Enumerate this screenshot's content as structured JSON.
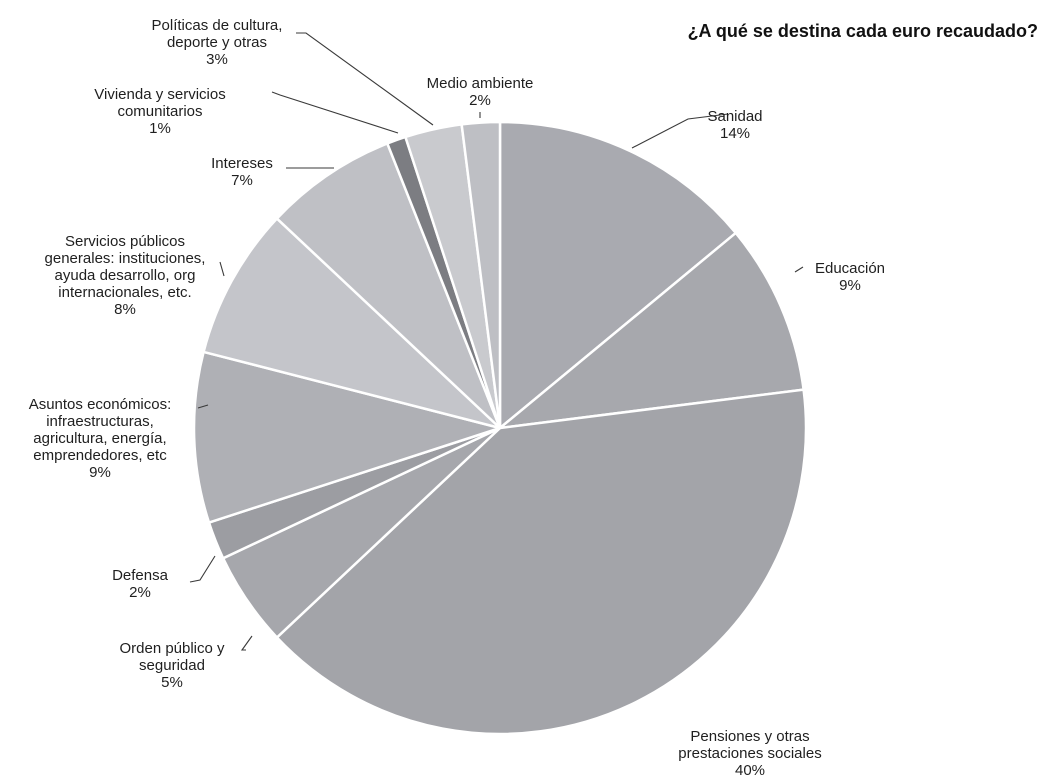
{
  "chart_data": {
    "type": "pie",
    "title": "¿A qué se destina cada euro recaudado?",
    "unit": "%",
    "start_angle_deg": 0,
    "direction": "clockwise",
    "slices": [
      {
        "label": "Sanidad",
        "value": 14,
        "value_label": "14%",
        "lines": [
          "Sanidad",
          "14%"
        ],
        "color": "#a9aab0"
      },
      {
        "label": "Educación",
        "value": 9,
        "value_label": "9%",
        "lines": [
          "Educación",
          "9%"
        ],
        "color": "#a7a8ad"
      },
      {
        "label": "Pensiones y otras prestaciones sociales",
        "value": 40,
        "value_label": "40%",
        "lines": [
          "Pensiones y otras",
          "prestaciones sociales",
          "40%"
        ],
        "color": "#a3a4a9"
      },
      {
        "label": "Orden público y seguridad",
        "value": 5,
        "value_label": "5%",
        "lines": [
          "Orden público y",
          "seguridad",
          "5%"
        ],
        "color": "#a6a7ac"
      },
      {
        "label": "Defensa",
        "value": 2,
        "value_label": "2%",
        "lines": [
          "Defensa",
          "2%"
        ],
        "color": "#9c9da2"
      },
      {
        "label": "Asuntos económicos: infraestructuras, agricultura, energía, emprendedores, etc",
        "value": 9,
        "value_label": "9%",
        "lines": [
          "Asuntos económicos:",
          "infraestructuras,",
          "agricultura, energía,",
          "emprendedores, etc",
          "9%"
        ],
        "color": "#afb0b5"
      },
      {
        "label": "Servicios públicos generales: instituciones, ayuda desarrollo, org internacionales, etc.",
        "value": 8,
        "value_label": "8%",
        "lines": [
          "Servicios públicos",
          "generales: instituciones,",
          "ayuda desarrollo, org",
          "internacionales, etc.",
          "8%"
        ],
        "color": "#c4c5ca"
      },
      {
        "label": "Intereses",
        "value": 7,
        "value_label": "7%",
        "lines": [
          "Intereses",
          "7%"
        ],
        "color": "#bfc0c5"
      },
      {
        "label": "Vivienda y servicios comunitarios",
        "value": 1,
        "value_label": "1%",
        "lines": [
          "Vivienda y servicios",
          "comunitarios",
          "1%"
        ],
        "color": "#7c7d82"
      },
      {
        "label": "Políticas de cultura, deporte y otras",
        "value": 3,
        "value_label": "3%",
        "lines": [
          "Políticas de cultura,",
          "deporte y otras",
          "3%"
        ],
        "color": "#c9cace"
      },
      {
        "label": "Medio ambiente",
        "value": 2,
        "value_label": "2%",
        "lines": [
          "Medio ambiente",
          "2%"
        ],
        "color": "#bebfc4"
      }
    ]
  }
}
